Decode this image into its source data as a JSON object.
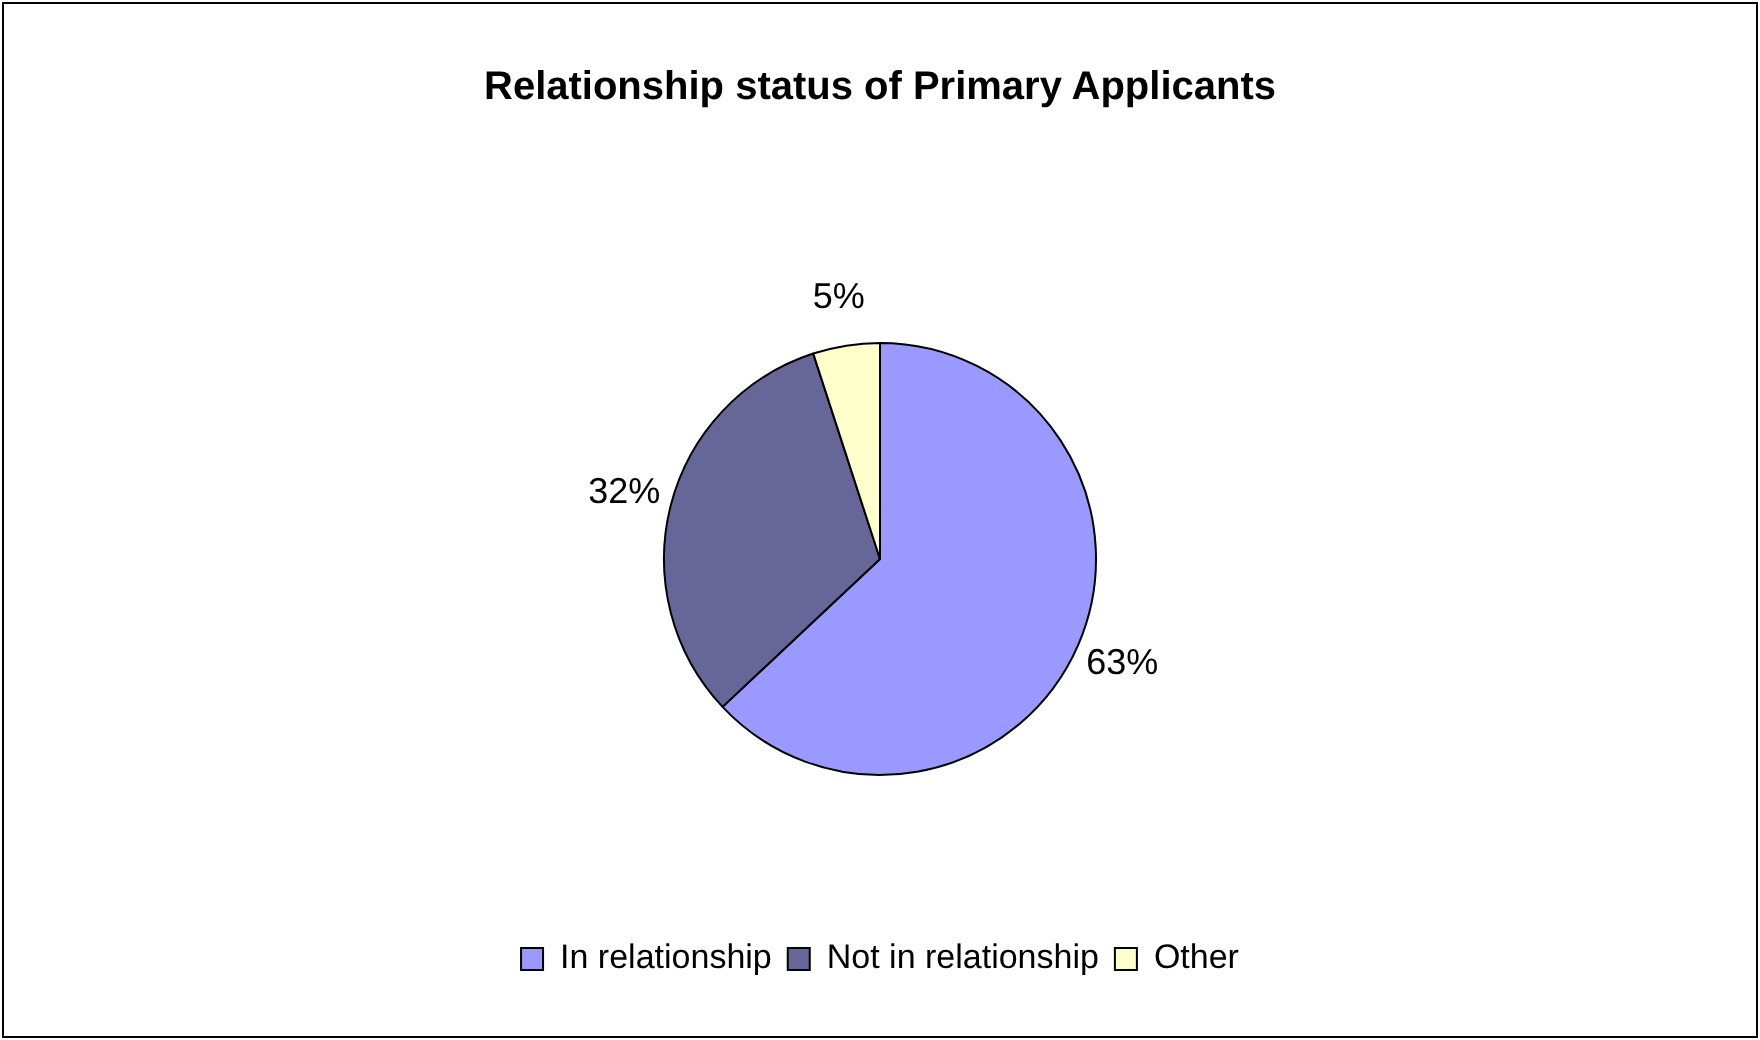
{
  "chart_data": {
    "type": "pie",
    "title": "Relationship status of Primary Applicants",
    "categories": [
      "In relationship",
      "Not in relationship",
      "Other"
    ],
    "values": [
      63,
      32,
      5
    ],
    "value_labels": [
      "63%",
      "32%",
      "5%"
    ],
    "colors": [
      "#9999ff",
      "#666699",
      "#ffffcc"
    ],
    "legend": "bottom"
  }
}
